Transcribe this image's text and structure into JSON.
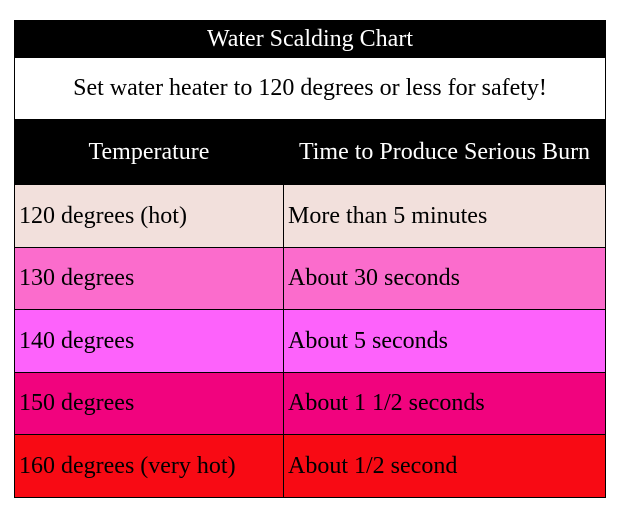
{
  "title": "Water Scalding Chart",
  "subtitle": "Set water heater to 120 degrees or less for safety!",
  "table": {
    "header": [
      "Temperature",
      "Time to Produce Serious Burn"
    ],
    "rows": [
      {
        "cells": [
          "120 degrees (hot)",
          "More than 5 minutes"
        ],
        "color": "#f2e0dc"
      },
      {
        "cells": [
          "130 degrees",
          "About 30 seconds"
        ],
        "color": "#fb6ccc"
      },
      {
        "cells": [
          "140 degrees",
          "About 5 seconds"
        ],
        "color": "#fd62fb"
      },
      {
        "cells": [
          "150 degrees",
          "About 1 1/2 seconds"
        ],
        "color": "#f1037e"
      },
      {
        "cells": [
          "160 degrees (very hot)",
          "About 1/2 second"
        ],
        "color": "#f80a14"
      }
    ]
  }
}
